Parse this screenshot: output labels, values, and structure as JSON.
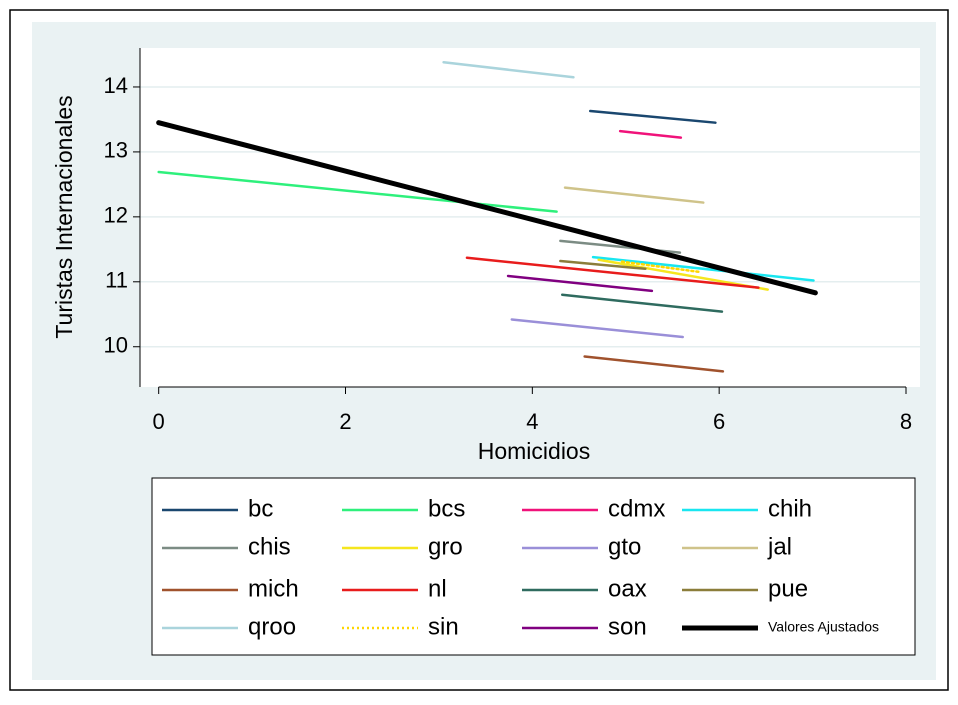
{
  "chart_data": {
    "type": "line",
    "x_label": "Homicidios",
    "y_label": "Turistas Internacionales",
    "xlim": [
      -0.2,
      8.15
    ],
    "ylim": [
      9.38,
      14.6
    ],
    "xticks": [
      0,
      2,
      4,
      6,
      8
    ],
    "yticks": [
      10,
      11,
      12,
      13,
      14
    ],
    "grid": true,
    "series": [
      {
        "name": "bc",
        "color": "#1a476f",
        "x": [
          4.62,
          5.96
        ],
        "values": [
          13.63,
          13.45
        ]
      },
      {
        "name": "bcs",
        "color": "#2ef07c",
        "x": [
          0,
          4.26
        ],
        "values": [
          12.69,
          12.08
        ]
      },
      {
        "name": "cdmx",
        "color": "#f0127a",
        "x": [
          4.94,
          5.59
        ],
        "values": [
          13.32,
          13.22
        ]
      },
      {
        "name": "chih",
        "color": "#19e6f0",
        "x": [
          4.65,
          7.01
        ],
        "values": [
          11.38,
          11.02
        ]
      },
      {
        "name": "chis",
        "color": "#7c8c84",
        "x": [
          4.3,
          5.58
        ],
        "values": [
          11.63,
          11.45
        ]
      },
      {
        "name": "gro",
        "color": "#f5e61e",
        "x": [
          4.71,
          6.52
        ],
        "values": [
          11.34,
          10.88
        ]
      },
      {
        "name": "gto",
        "color": "#9a8fd8",
        "x": [
          3.78,
          5.61
        ],
        "values": [
          10.42,
          10.15
        ]
      },
      {
        "name": "jal",
        "color": "#cfc38a",
        "x": [
          4.35,
          5.83
        ],
        "values": [
          12.45,
          12.22
        ]
      },
      {
        "name": "mich",
        "color": "#a0522d",
        "x": [
          4.56,
          6.04
        ],
        "values": [
          9.85,
          9.62
        ]
      },
      {
        "name": "nl",
        "color": "#e81c1c",
        "x": [
          3.3,
          6.42
        ],
        "values": [
          11.37,
          10.91
        ]
      },
      {
        "name": "oax",
        "color": "#2f6b5f",
        "x": [
          4.32,
          6.03
        ],
        "values": [
          10.8,
          10.54
        ]
      },
      {
        "name": "pue",
        "color": "#8b7d3a",
        "x": [
          4.3,
          5.21
        ],
        "values": [
          11.32,
          11.2
        ]
      },
      {
        "name": "qroo",
        "color": "#aad4dc",
        "x": [
          3.05,
          4.44
        ],
        "values": [
          14.38,
          14.15
        ]
      },
      {
        "name": "sin",
        "color": "#ffd700",
        "dotted": true,
        "x": [
          4.96,
          5.8
        ],
        "values": [
          11.31,
          11.15
        ]
      },
      {
        "name": "son",
        "color": "#800080",
        "x": [
          3.74,
          5.28
        ],
        "values": [
          11.09,
          10.86
        ]
      },
      {
        "name": "Valores Ajustados",
        "color": "#000000",
        "width": 5,
        "x": [
          0,
          7.03
        ],
        "values": [
          13.45,
          10.83
        ]
      }
    ]
  }
}
